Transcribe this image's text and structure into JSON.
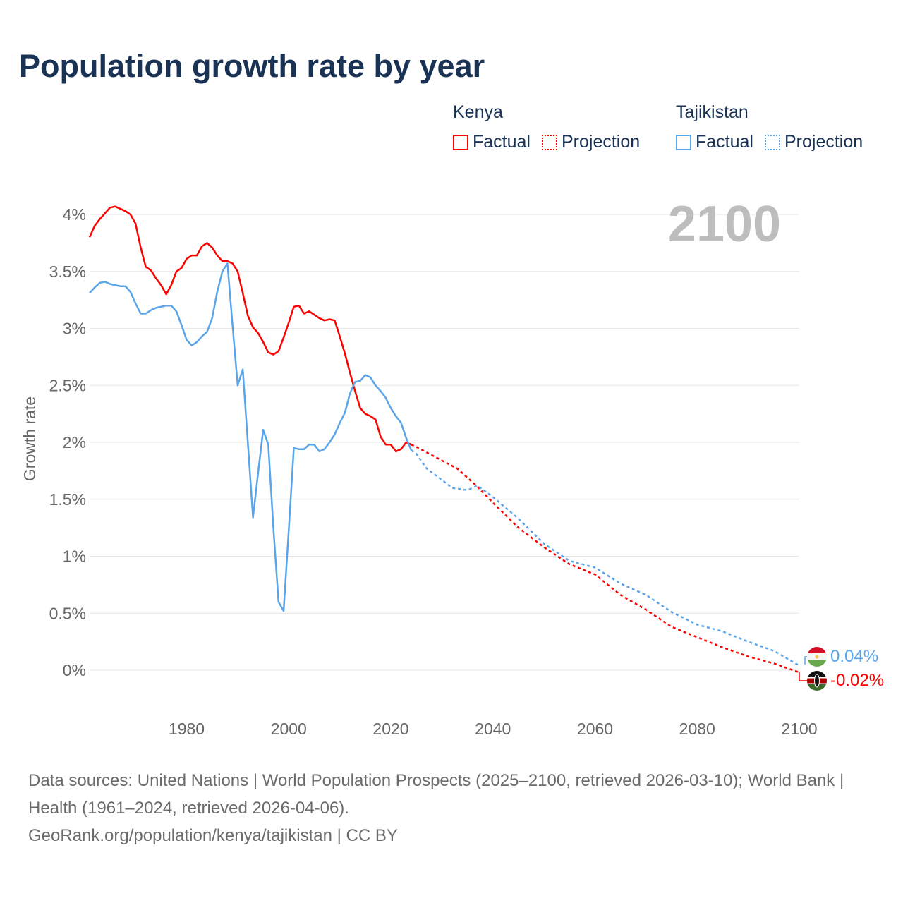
{
  "title": "Population growth rate by year",
  "legend": {
    "groups": [
      {
        "name": "Kenya",
        "factual": "Factual",
        "projection": "Projection",
        "color": "#ff0000"
      },
      {
        "name": "Tajikistan",
        "factual": "Factual",
        "projection": "Projection",
        "color": "#5aa5ea"
      }
    ]
  },
  "year_overlay": "2100",
  "end_labels": {
    "tajikistan": "0.04%",
    "kenya": "-0.02%"
  },
  "footer": {
    "line1": "Data sources: United Nations | World Population Prospects (2025–2100, retrieved 2026-03-10); World Bank | Health (1961–2024, retrieved 2026-04-06).",
    "line2": "GeoRank.org/population/kenya/tajikistan | CC BY"
  },
  "chart_data": {
    "type": "line",
    "title": "Population growth rate by year",
    "xlabel": "",
    "ylabel": "Growth rate",
    "xlim": [
      1961,
      2100
    ],
    "ylim": [
      0,
      4
    ],
    "x_ticks": [
      "1980",
      "2000",
      "2020",
      "2040",
      "2060",
      "2080",
      "2100"
    ],
    "y_ticks": [
      "0%",
      "0.5%",
      "1%",
      "1.5%",
      "2%",
      "2.5%",
      "3%",
      "3.5%",
      "4%"
    ],
    "grid": true,
    "legend_position": "top-right",
    "series": [
      {
        "name": "Kenya Factual",
        "color": "#ff0000",
        "dashed": false,
        "x": [
          1961,
          1962,
          1963,
          1964,
          1965,
          1966,
          1967,
          1968,
          1969,
          1970,
          1971,
          1972,
          1973,
          1974,
          1975,
          1976,
          1977,
          1978,
          1979,
          1980,
          1981,
          1982,
          1983,
          1984,
          1985,
          1986,
          1987,
          1988,
          1989,
          1990,
          1991,
          1992,
          1993,
          1994,
          1995,
          1996,
          1997,
          1998,
          1999,
          2000,
          2001,
          2002,
          2003,
          2004,
          2005,
          2006,
          2007,
          2008,
          2009,
          2010,
          2011,
          2012,
          2013,
          2014,
          2015,
          2016,
          2017,
          2018,
          2019,
          2020,
          2021,
          2022,
          2023,
          2024
        ],
        "y": [
          3.8,
          3.9,
          3.96,
          4.01,
          4.06,
          4.07,
          4.05,
          4.03,
          4.0,
          3.92,
          3.71,
          3.54,
          3.51,
          3.44,
          3.38,
          3.3,
          3.38,
          3.5,
          3.53,
          3.61,
          3.64,
          3.64,
          3.72,
          3.75,
          3.71,
          3.64,
          3.59,
          3.59,
          3.57,
          3.5,
          3.31,
          3.11,
          3.01,
          2.96,
          2.88,
          2.79,
          2.77,
          2.8,
          2.92,
          3.05,
          3.19,
          3.2,
          3.13,
          3.15,
          3.12,
          3.09,
          3.07,
          3.08,
          3.07,
          2.93,
          2.78,
          2.61,
          2.45,
          2.3,
          2.25,
          2.23,
          2.2,
          2.05,
          1.98,
          1.98,
          1.92,
          1.94,
          2.0,
          1.98
        ]
      },
      {
        "name": "Kenya Projection",
        "color": "#ff0000",
        "dashed": true,
        "x": [
          2024,
          2025,
          2030,
          2033,
          2035,
          2037,
          2040,
          2045,
          2050,
          2055,
          2060,
          2065,
          2070,
          2075,
          2080,
          2085,
          2090,
          2095,
          2100
        ],
        "y": [
          1.98,
          1.96,
          1.84,
          1.77,
          1.69,
          1.61,
          1.47,
          1.25,
          1.08,
          0.93,
          0.84,
          0.66,
          0.53,
          0.38,
          0.29,
          0.2,
          0.12,
          0.06,
          -0.02
        ]
      },
      {
        "name": "Tajikistan Factual",
        "color": "#5aa5ea",
        "dashed": false,
        "x": [
          1961,
          1962,
          1963,
          1964,
          1965,
          1966,
          1967,
          1968,
          1969,
          1970,
          1971,
          1972,
          1973,
          1974,
          1975,
          1976,
          1977,
          1978,
          1979,
          1980,
          1981,
          1982,
          1983,
          1984,
          1985,
          1986,
          1987,
          1988,
          1989,
          1990,
          1991,
          1992,
          1993,
          1994,
          1995,
          1996,
          1997,
          1998,
          1999,
          2000,
          2001,
          2002,
          2003,
          2004,
          2005,
          2006,
          2007,
          2008,
          2009,
          2010,
          2011,
          2012,
          2013,
          2014,
          2015,
          2016,
          2017,
          2018,
          2019,
          2020,
          2021,
          2022,
          2023,
          2024
        ],
        "y": [
          3.31,
          3.36,
          3.4,
          3.41,
          3.39,
          3.38,
          3.37,
          3.37,
          3.32,
          3.22,
          3.13,
          3.13,
          3.16,
          3.18,
          3.19,
          3.2,
          3.2,
          3.15,
          3.03,
          2.9,
          2.85,
          2.88,
          2.93,
          2.97,
          3.09,
          3.32,
          3.5,
          3.57,
          3.03,
          2.5,
          2.64,
          1.99,
          1.34,
          1.73,
          2.11,
          1.98,
          1.25,
          0.6,
          0.52,
          1.23,
          1.95,
          1.94,
          1.94,
          1.98,
          1.98,
          1.92,
          1.94,
          2.0,
          2.07,
          2.17,
          2.26,
          2.43,
          2.53,
          2.54,
          2.59,
          2.57,
          2.5,
          2.45,
          2.39,
          2.3,
          2.23,
          2.17,
          2.04,
          1.93
        ]
      },
      {
        "name": "Tajikistan Projection",
        "color": "#5aa5ea",
        "dashed": true,
        "x": [
          2024,
          2025,
          2027,
          2030,
          2032,
          2035,
          2037,
          2040,
          2045,
          2050,
          2055,
          2060,
          2065,
          2070,
          2075,
          2080,
          2085,
          2090,
          2095,
          2100
        ],
        "y": [
          1.93,
          1.9,
          1.77,
          1.67,
          1.6,
          1.58,
          1.62,
          1.52,
          1.33,
          1.11,
          0.96,
          0.9,
          0.76,
          0.66,
          0.51,
          0.4,
          0.34,
          0.25,
          0.17,
          0.04
        ]
      }
    ]
  }
}
